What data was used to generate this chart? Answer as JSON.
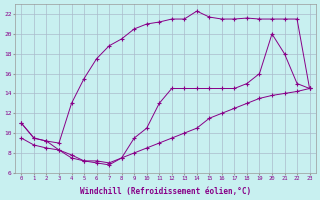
{
  "xlabel": "Windchill (Refroidissement éolien,°C)",
  "bg_color": "#c8f0f0",
  "grid_color": "#aabbcc",
  "line_color": "#880088",
  "xlim_min": -0.5,
  "xlim_max": 23.5,
  "ylim_min": 6,
  "ylim_max": 23,
  "xticks": [
    0,
    1,
    2,
    3,
    4,
    5,
    6,
    7,
    8,
    9,
    10,
    11,
    12,
    13,
    14,
    15,
    16,
    17,
    18,
    19,
    20,
    21,
    22,
    23
  ],
  "yticks": [
    6,
    8,
    10,
    12,
    14,
    16,
    18,
    20,
    22
  ],
  "upper_x": [
    0,
    1,
    2,
    3,
    4,
    5,
    6,
    7,
    8,
    9,
    10,
    11,
    12,
    13,
    14,
    15,
    16,
    17,
    18,
    19,
    20,
    21,
    22,
    23
  ],
  "upper_y": [
    11.0,
    9.5,
    9.2,
    9.0,
    13.0,
    15.5,
    17.5,
    18.8,
    19.5,
    20.5,
    21.0,
    21.2,
    21.5,
    21.5,
    22.3,
    21.7,
    21.5,
    21.5,
    21.6,
    21.5,
    21.5,
    21.5,
    21.5,
    14.5
  ],
  "mid_x": [
    0,
    1,
    2,
    3,
    4,
    5,
    6,
    7,
    8,
    9,
    10,
    11,
    12,
    13,
    14,
    15,
    16,
    17,
    18,
    19,
    20,
    21,
    22,
    23
  ],
  "mid_y": [
    11.0,
    9.5,
    9.2,
    8.3,
    7.5,
    7.2,
    7.2,
    7.0,
    7.5,
    9.5,
    10.5,
    13.0,
    14.5,
    14.5,
    14.5,
    14.5,
    14.5,
    14.5,
    15.0,
    16.0,
    20.0,
    18.0,
    15.0,
    14.5
  ],
  "low_x": [
    0,
    1,
    2,
    3,
    4,
    5,
    6,
    7,
    8,
    9,
    10,
    11,
    12,
    13,
    14,
    15,
    16,
    17,
    18,
    19,
    20,
    21,
    22,
    23
  ],
  "low_y": [
    9.5,
    8.8,
    8.5,
    8.3,
    7.8,
    7.2,
    7.0,
    6.8,
    7.5,
    8.0,
    8.5,
    9.0,
    9.5,
    10.0,
    10.5,
    11.5,
    12.0,
    12.5,
    13.0,
    13.5,
    13.8,
    14.0,
    14.2,
    14.5
  ]
}
